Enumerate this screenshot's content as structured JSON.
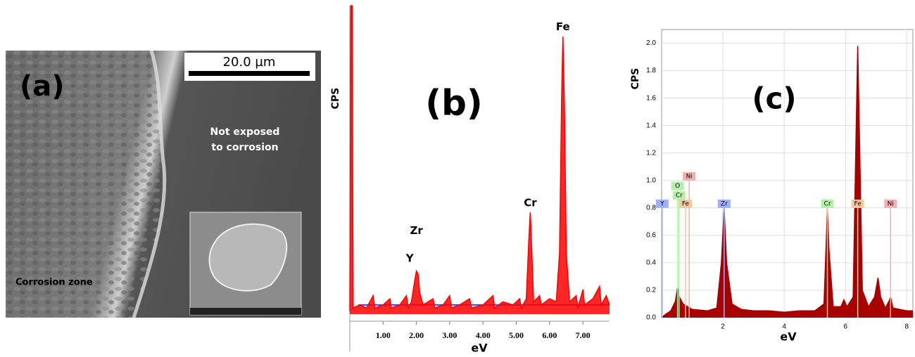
{
  "panel_a": {
    "label": "(a)",
    "scale_bar": "20.0 µm",
    "not_exposed": [
      "Not exposed",
      "to corrosion"
    ],
    "corrosion_zone": "Corrosion zone"
  },
  "chart_data": [
    {
      "type": "area",
      "title": "(b)",
      "xlabel": "eV",
      "ylabel": "CPS",
      "color": "#ff0000",
      "grid": false,
      "xlim": [
        0,
        7.8
      ],
      "ylim": [
        0,
        100
      ],
      "xticks": [
        {
          "value": 1,
          "label": "1.00"
        },
        {
          "value": 2,
          "label": "2.00"
        },
        {
          "value": 3,
          "label": "3.00"
        },
        {
          "value": 4,
          "label": "4.00"
        },
        {
          "value": 5,
          "label": "5.00"
        },
        {
          "value": 6,
          "label": "6.00"
        },
        {
          "value": 7,
          "label": "7.00"
        }
      ],
      "x": [
        0,
        0.03,
        0.07,
        0.1,
        0.3,
        0.5,
        0.7,
        0.75,
        1.0,
        1.2,
        1.25,
        1.5,
        1.7,
        1.75,
        1.85,
        1.95,
        2.0,
        2.05,
        2.1,
        2.2,
        2.5,
        2.55,
        2.8,
        3.0,
        3.05,
        3.3,
        3.6,
        3.65,
        4.0,
        4.3,
        4.35,
        4.6,
        4.9,
        5.1,
        5.15,
        5.3,
        5.38,
        5.42,
        5.46,
        5.52,
        5.7,
        5.75,
        6.0,
        6.2,
        6.3,
        6.36,
        6.4,
        6.45,
        6.5,
        6.6,
        6.8,
        6.85,
        7.0,
        7.05,
        7.3,
        7.5,
        7.55,
        7.7,
        7.8
      ],
      "values": [
        1,
        100,
        100,
        2,
        3,
        2,
        6,
        2,
        3,
        5,
        2,
        3,
        6,
        2,
        4,
        11,
        14,
        13,
        7,
        3,
        5,
        2,
        3,
        6,
        2,
        3,
        5,
        2,
        3,
        6,
        2,
        4,
        3,
        5,
        2,
        5,
        25,
        33,
        22,
        4,
        6,
        3,
        5,
        4,
        20,
        70,
        90,
        65,
        20,
        4,
        6,
        2,
        8,
        3,
        5,
        9,
        3,
        6,
        3
      ],
      "annotations": [
        {
          "text": "Fe",
          "x": 6.4,
          "y": 93
        },
        {
          "text": "Cr",
          "x": 5.42,
          "y": 36
        },
        {
          "text": "Zr",
          "x": 2.0,
          "y": 27
        },
        {
          "text": "Y",
          "x": 1.8,
          "y": 18
        }
      ]
    },
    {
      "type": "area",
      "title": "(c)",
      "xlabel": "eV",
      "ylabel": "CPS",
      "color": "#a80000",
      "grid": true,
      "xlim": [
        0,
        8.2
      ],
      "ylim": [
        0,
        2.1
      ],
      "xticks": [
        2,
        4,
        6,
        8
      ],
      "yticks": [
        {
          "value": 0,
          "label": "0.0"
        },
        0.2,
        0.4,
        0.6,
        0.8,
        {
          "value": 1,
          "label": "1.0"
        },
        1.2,
        1.4,
        1.6,
        1.8,
        {
          "value": 2,
          "label": "2.0"
        }
      ],
      "x": [
        0,
        0.1,
        0.3,
        0.45,
        0.52,
        0.58,
        0.7,
        0.85,
        1.0,
        1.5,
        1.8,
        1.95,
        2.04,
        2.12,
        2.3,
        2.6,
        3,
        3.5,
        4,
        4.5,
        5,
        5.3,
        5.38,
        5.41,
        5.46,
        5.6,
        5.85,
        5.95,
        6.05,
        6.25,
        6.35,
        6.4,
        6.45,
        6.55,
        6.75,
        6.95,
        7.06,
        7.15,
        7.3,
        7.42,
        7.47,
        7.55,
        8.0,
        8.2
      ],
      "values": [
        0,
        0.02,
        0.05,
        0.12,
        0.22,
        0.15,
        0.1,
        0.08,
        0.06,
        0.05,
        0.07,
        0.4,
        0.8,
        0.4,
        0.1,
        0.06,
        0.05,
        0.05,
        0.04,
        0.05,
        0.05,
        0.1,
        0.6,
        0.8,
        0.5,
        0.08,
        0.08,
        0.13,
        0.08,
        0.15,
        1.4,
        1.98,
        1.4,
        0.2,
        0.08,
        0.15,
        0.29,
        0.15,
        0.07,
        0.12,
        0.15,
        0.07,
        0.05,
        0.05
      ],
      "annotations": [
        {
          "text": "Y",
          "x": 0.02,
          "y": 0.83,
          "color": "#9fb0ff"
        },
        {
          "text": "O",
          "x": 0.52,
          "y": 0.96,
          "color": "#b6f0a8"
        },
        {
          "text": "Cr",
          "x": 0.57,
          "y": 0.89,
          "color": "#b6f0a8"
        },
        {
          "text": "Ni",
          "x": 0.9,
          "y": 1.03,
          "color": "#f7b0b0"
        },
        {
          "text": "Fe",
          "x": 0.78,
          "y": 0.83,
          "color": "#f8c8a0"
        },
        {
          "text": "Zr",
          "x": 2.04,
          "y": 0.83,
          "color": "#9fb0ff"
        },
        {
          "text": "Cr",
          "x": 5.41,
          "y": 0.83,
          "color": "#b6f0a8"
        },
        {
          "text": "Fe",
          "x": 6.4,
          "y": 0.83,
          "color": "#f8c8a0"
        },
        {
          "text": "Ni",
          "x": 7.47,
          "y": 0.83,
          "color": "#f7b0b0"
        }
      ]
    }
  ]
}
